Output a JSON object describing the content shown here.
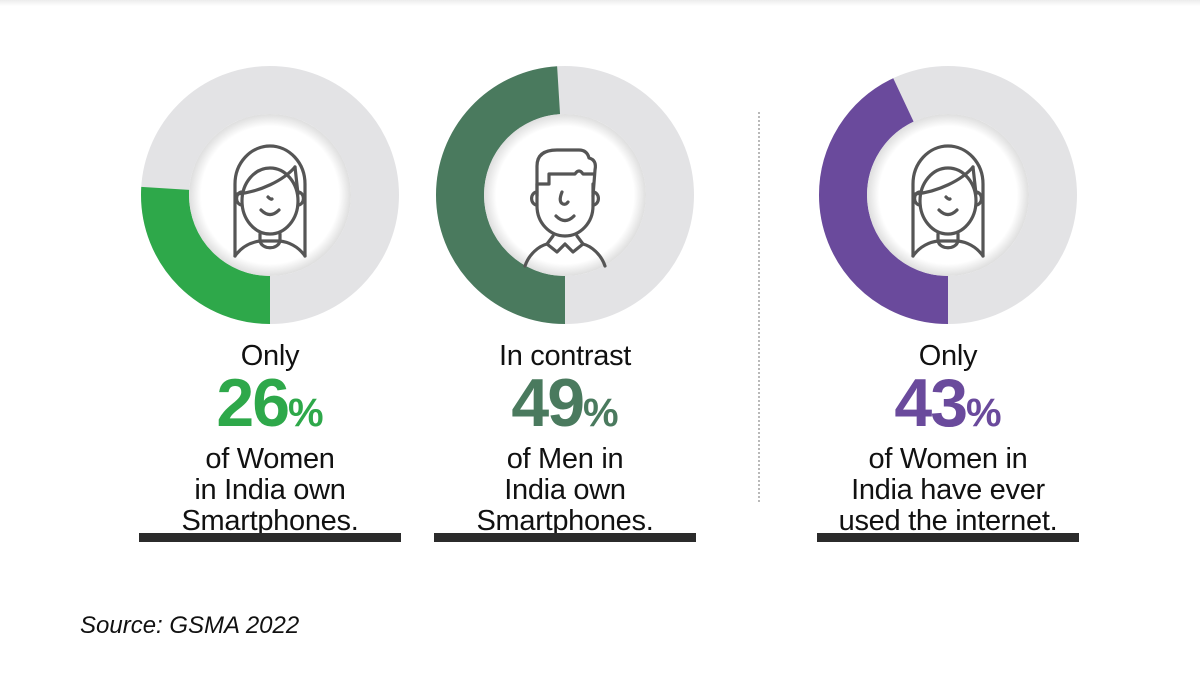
{
  "stats": [
    {
      "lead": "Only",
      "value": "26",
      "unit": "%",
      "desc1": "of Women",
      "desc2": "in India own",
      "desc3": "Smartphones.",
      "color": "#2ea84a",
      "icon": "woman-avatar-icon"
    },
    {
      "lead": "In contrast",
      "value": "49",
      "unit": "%",
      "desc1": "of Men in",
      "desc2": "India own",
      "desc3": "Smartphones.",
      "color": "#4a7a5e",
      "icon": "man-avatar-icon"
    },
    {
      "lead": "Only",
      "value": "43",
      "unit": "%",
      "desc1": "of Women in",
      "desc2": "India have ever",
      "desc3": "used the internet.",
      "color": "#6a4a9c",
      "icon": "woman-avatar-icon"
    }
  ],
  "source": "Source: GSMA 2022",
  "colors": {
    "track": "#e3e3e5",
    "text": "#111111",
    "rule": "#2b2b2b",
    "icon_stroke": "#555555"
  },
  "chart_data": {
    "type": "pie",
    "subtype": "donut",
    "title": "",
    "series": [
      {
        "name": "Women in India who own smartphones",
        "value": 26,
        "remainder": 74,
        "color": "#2ea84a"
      },
      {
        "name": "Men in India who own smartphones",
        "value": 49,
        "remainder": 51,
        "color": "#4a7a5e"
      },
      {
        "name": "Women in India who have ever used the internet",
        "value": 43,
        "remainder": 57,
        "color": "#6a4a9c"
      }
    ],
    "unit": "%",
    "annotations": [
      "Only",
      "In contrast",
      "Only"
    ],
    "source": "GSMA 2022",
    "legend": "none"
  }
}
